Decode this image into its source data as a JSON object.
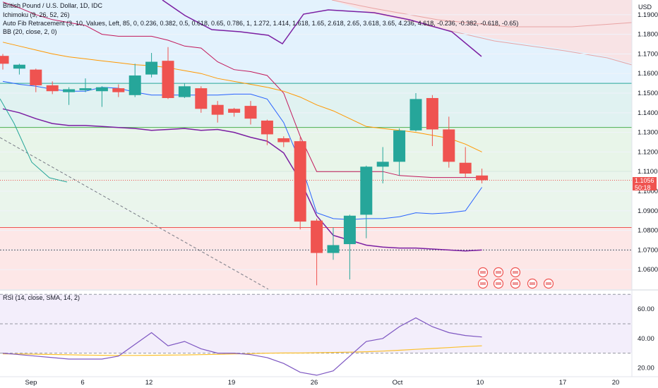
{
  "legend": {
    "symbol": "British Pound / U.S. Dollar, 1D, IDC",
    "ichimoku": "Ichimoku (9, 26, 52, 26)",
    "fib": "Auto Fib Retracement (3, 10, Values, Left, 85, 0, 0.236, 0.382, 0.5, 0.618, 0.65, 0.786, 1, 1.272, 1.414, 1.618, 1.65, 2.618, 2.65, 3.618, 3.65, 4.236, 4.618, -0.236, -0.382, -0.618, -0.65)",
    "bb": "BB (20, close, 2, 0)",
    "rsi": "RSI (14, close, SMA, 14, 2)"
  },
  "price_axis": {
    "currency": "USD",
    "last_price": "1.1056",
    "countdown": "50:18",
    "last_price_color": "#ef5350"
  },
  "colors": {
    "up": "#26a69a",
    "down": "#ef5350",
    "bb_upper": "#c2185b",
    "bb_lower": "#2962ff",
    "bb_basis": "#ff9800",
    "ichimoku_conversion": "#7b1fa2",
    "rsi_line": "#7e57c2",
    "rsi_ma": "#fbc02d"
  },
  "chart_data": [
    {
      "type": "candlestick",
      "title": "British Pound / U.S. Dollar, 1D, IDC",
      "y_unit": "USD",
      "ylim": [
        1.05,
        1.1975
      ],
      "y_ticks": [
        "1.1900",
        "1.1800",
        "1.1700",
        "1.1600",
        "1.1500",
        "1.1400",
        "1.1300",
        "1.1200",
        "1.1100",
        "1.1000",
        "1.0900",
        "1.0800",
        "1.0700",
        "1.0600"
      ],
      "x_ticks": [
        "Sep",
        "6",
        "12",
        "19",
        "26",
        "Oct",
        "10",
        "17",
        "20"
      ],
      "candles": [
        {
          "o": 1.169,
          "h": 1.17,
          "l": 1.162,
          "c": 1.165
        },
        {
          "o": 1.1625,
          "h": 1.165,
          "l": 1.1595,
          "c": 1.1645
        },
        {
          "o": 1.162,
          "h": 1.1625,
          "l": 1.1505,
          "c": 1.154
        },
        {
          "o": 1.154,
          "h": 1.156,
          "l": 1.1495,
          "c": 1.151
        },
        {
          "o": 1.1505,
          "h": 1.153,
          "l": 1.144,
          "c": 1.152
        },
        {
          "o": 1.1515,
          "h": 1.1575,
          "l": 1.1505,
          "c": 1.1525
        },
        {
          "o": 1.151,
          "h": 1.1535,
          "l": 1.143,
          "c": 1.153
        },
        {
          "o": 1.1525,
          "h": 1.1545,
          "l": 1.148,
          "c": 1.1505
        },
        {
          "o": 1.149,
          "h": 1.165,
          "l": 1.148,
          "c": 1.159
        },
        {
          "o": 1.1595,
          "h": 1.1705,
          "l": 1.158,
          "c": 1.166
        },
        {
          "o": 1.1665,
          "h": 1.1735,
          "l": 1.147,
          "c": 1.1475
        },
        {
          "o": 1.148,
          "h": 1.155,
          "l": 1.1475,
          "c": 1.1535
        },
        {
          "o": 1.1525,
          "h": 1.1535,
          "l": 1.14,
          "c": 1.142
        },
        {
          "o": 1.144,
          "h": 1.146,
          "l": 1.135,
          "c": 1.139
        },
        {
          "o": 1.142,
          "h": 1.1425,
          "l": 1.138,
          "c": 1.14
        },
        {
          "o": 1.1435,
          "h": 1.146,
          "l": 1.134,
          "c": 1.137
        },
        {
          "o": 1.136,
          "h": 1.1365,
          "l": 1.1235,
          "c": 1.129
        },
        {
          "o": 1.127,
          "h": 1.128,
          "l": 1.1225,
          "c": 1.125
        },
        {
          "o": 1.1255,
          "h": 1.1275,
          "l": 1.0805,
          "c": 1.0845
        },
        {
          "o": 1.085,
          "h": 1.086,
          "l": 1.052,
          "c": 1.0685
        },
        {
          "o": 1.0685,
          "h": 1.0815,
          "l": 1.065,
          "c": 1.0725
        },
        {
          "o": 1.073,
          "h": 1.088,
          "l": 1.055,
          "c": 1.0875
        },
        {
          "o": 1.088,
          "h": 1.113,
          "l": 1.076,
          "c": 1.1125
        },
        {
          "o": 1.1125,
          "h": 1.1225,
          "l": 1.104,
          "c": 1.115
        },
        {
          "o": 1.115,
          "h": 1.132,
          "l": 1.108,
          "c": 1.131
        },
        {
          "o": 1.131,
          "h": 1.15,
          "l": 1.1305,
          "c": 1.147
        },
        {
          "o": 1.1475,
          "h": 1.149,
          "l": 1.123,
          "c": 1.1315
        },
        {
          "o": 1.1315,
          "h": 1.138,
          "l": 1.112,
          "c": 1.115
        },
        {
          "o": 1.1145,
          "h": 1.1225,
          "l": 1.107,
          "c": 1.109
        },
        {
          "o": 1.108,
          "h": 1.1115,
          "l": 1.104,
          "c": 1.1056
        }
      ],
      "fib_levels": [
        1.155,
        1.1325,
        1.11,
        1.0815
      ],
      "bollinger": {
        "upper": [
          1.1965,
          1.1935,
          1.19,
          1.1875,
          1.186,
          1.1845,
          1.18,
          1.179,
          1.179,
          1.179,
          1.177,
          1.174,
          1.173,
          1.166,
          1.162,
          1.161,
          1.159,
          1.15,
          1.128,
          1.11,
          1.11,
          1.11,
          1.11,
          1.11,
          1.108,
          1.1075,
          1.107,
          1.107,
          1.107,
          1.107
        ],
        "basis": [
          1.176,
          1.174,
          1.172,
          1.17,
          1.1685,
          1.1675,
          1.1665,
          1.1655,
          1.1645,
          1.164,
          1.163,
          1.1615,
          1.16,
          1.1575,
          1.156,
          1.1545,
          1.153,
          1.151,
          1.148,
          1.144,
          1.141,
          1.137,
          1.133,
          1.132,
          1.131,
          1.13,
          1.1285,
          1.127,
          1.124,
          1.12
        ],
        "lower": [
          1.156,
          1.1545,
          1.1535,
          1.152,
          1.151,
          1.151,
          1.153,
          1.1525,
          1.1505,
          1.149,
          1.149,
          1.149,
          1.149,
          1.149,
          1.1495,
          1.1495,
          1.147,
          1.135,
          1.115,
          1.089,
          1.086,
          1.0855,
          1.086,
          1.086,
          1.087,
          1.089,
          1.0885,
          1.089,
          1.09,
          1.102
        ]
      },
      "ichimoku_conversion": [
        1.142,
        1.14,
        1.137,
        1.1345,
        1.1335,
        1.1335,
        1.133,
        1.1325,
        1.132,
        1.131,
        1.1315,
        1.132,
        1.131,
        1.1315,
        1.13,
        1.1275,
        1.1255,
        1.1195,
        1.1055,
        1.0875,
        1.0775,
        1.075,
        1.0725,
        1.0715,
        1.071,
        1.071,
        1.0705,
        1.07,
        1.0695,
        1.07
      ]
    },
    {
      "type": "line",
      "title": "RSI (14, close, SMA, 14, 2)",
      "ylim": [
        14,
        73
      ],
      "y_ticks": [
        "60.00",
        "40.00",
        "20.00"
      ],
      "bands": [
        70,
        50,
        30
      ],
      "series": [
        {
          "values": [
            30,
            29,
            28,
            27,
            26,
            26,
            26,
            28,
            36,
            44,
            35,
            38,
            33,
            30,
            30,
            29,
            27,
            23,
            17,
            15,
            18,
            28,
            38,
            40,
            48,
            54,
            48,
            44,
            42,
            41
          ]
        },
        {
          "values": [
            29.5,
            29.5,
            29.3,
            29.1,
            28.9,
            28.7,
            28.6,
            28.5,
            28.5,
            28.6,
            28.7,
            28.8,
            29.0,
            29.2,
            29.5,
            29.7,
            30.0,
            30.1,
            30.1,
            30.3,
            30.5,
            30.7,
            31.0,
            31.4,
            32.0,
            32.6,
            33.2,
            33.8,
            34.5,
            35.0
          ]
        }
      ]
    }
  ]
}
